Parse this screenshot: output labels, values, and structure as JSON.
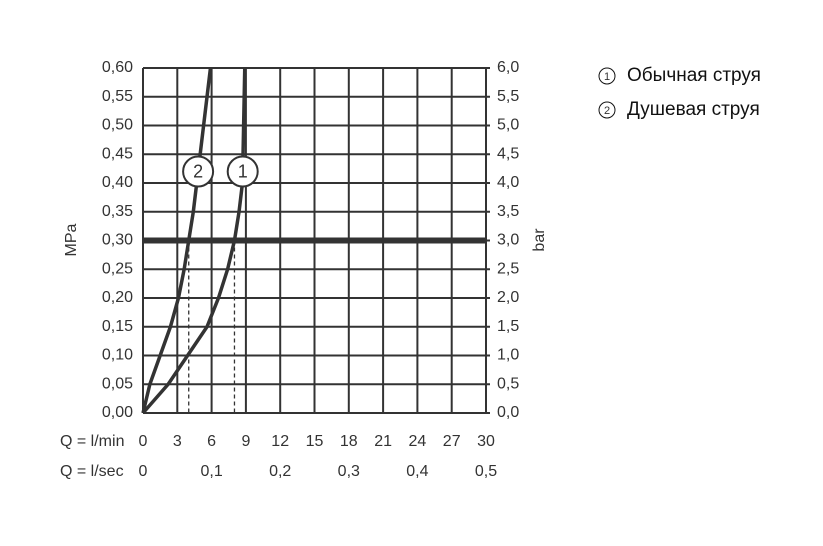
{
  "chart_data": {
    "type": "line",
    "xlabel": "Q = l/min",
    "x2label": "Q = l/sec",
    "ylabel": "MPa",
    "y2label": "bar",
    "xlim": [
      0,
      30
    ],
    "xticks": [
      0,
      3,
      6,
      9,
      12,
      15,
      18,
      21,
      24,
      27,
      30
    ],
    "x2lim": [
      0,
      0.5
    ],
    "x2ticks": [
      0,
      {
        "value": 0.1,
        "label": "0,1"
      },
      {
        "value": 0.2,
        "label": "0,2"
      },
      {
        "value": 0.3,
        "label": "0,3"
      },
      {
        "value": 0.4,
        "label": "0,4"
      },
      {
        "value": 0.5,
        "label": "0,5"
      }
    ],
    "ylim": [
      0,
      0.6
    ],
    "yticks": [
      {
        "value": 0,
        "label": "0,00"
      },
      {
        "value": 0.05,
        "label": "0,05"
      },
      {
        "value": 0.1,
        "label": "0,10"
      },
      {
        "value": 0.15,
        "label": "0,15"
      },
      {
        "value": 0.2,
        "label": "0,20"
      },
      {
        "value": 0.25,
        "label": "0,25"
      },
      {
        "value": 0.3,
        "label": "0,30"
      },
      {
        "value": 0.35,
        "label": "0,35"
      },
      {
        "value": 0.4,
        "label": "0,40"
      },
      {
        "value": 0.45,
        "label": "0,45"
      },
      {
        "value": 0.5,
        "label": "0,50"
      },
      {
        "value": 0.55,
        "label": "0,55"
      },
      {
        "value": 0.6,
        "label": "0,60"
      }
    ],
    "y2lim": [
      0,
      6
    ],
    "y2ticks": [
      {
        "value": 0,
        "label": "0,0"
      },
      {
        "value": 0.5,
        "label": "0,5"
      },
      {
        "value": 1,
        "label": "1,0"
      },
      {
        "value": 1.5,
        "label": "1,5"
      },
      {
        "value": 2,
        "label": "2,0"
      },
      {
        "value": 2.5,
        "label": "2,5"
      },
      {
        "value": 3,
        "label": "3,0"
      },
      {
        "value": 3.5,
        "label": "3,5"
      },
      {
        "value": 4,
        "label": "4,0"
      },
      {
        "value": 4.5,
        "label": "4,5"
      },
      {
        "value": 5,
        "label": "5,0"
      },
      {
        "value": 5.5,
        "label": "5,5"
      },
      {
        "value": 6,
        "label": "6,0"
      }
    ],
    "grid": true,
    "reference_y": 0.3,
    "series": [
      {
        "name": "Обычная струя",
        "label": "1",
        "color": "#333333",
        "operating_flow": 8,
        "x": [
          0,
          2.2,
          3.9,
          5.6,
          6.6,
          7.4,
          8.0,
          8.4,
          8.7,
          8.75,
          8.8,
          8.85,
          8.9
        ],
        "values": [
          0,
          0.05,
          0.1,
          0.15,
          0.2,
          0.25,
          0.3,
          0.35,
          0.4,
          0.45,
          0.5,
          0.55,
          0.6
        ]
      },
      {
        "name": "Душевая струя",
        "label": "2",
        "color": "#333333",
        "operating_flow": 4,
        "x": [
          0,
          0.6,
          1.5,
          2.4,
          3.1,
          3.6,
          4.0,
          4.4,
          4.7,
          5.0,
          5.3,
          5.6,
          5.9
        ],
        "values": [
          0,
          0.05,
          0.1,
          0.15,
          0.2,
          0.25,
          0.3,
          0.35,
          0.4,
          0.45,
          0.5,
          0.55,
          0.6
        ]
      }
    ]
  }
}
